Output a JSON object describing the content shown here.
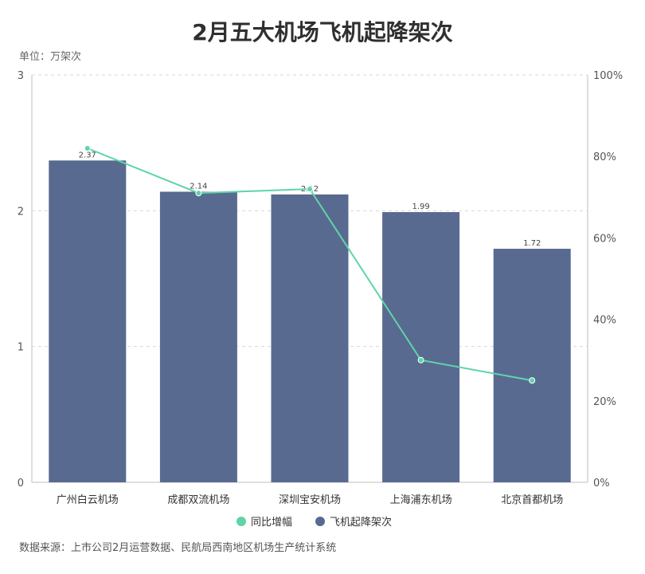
{
  "chart_data": {
    "type": "bar",
    "title": "2月五大机场飞机起降架次",
    "unit_label": "单位：万架次",
    "categories": [
      "广州白云机场",
      "成都双流机场",
      "深圳宝安机场",
      "上海浦东机场",
      "北京首都机场"
    ],
    "series": [
      {
        "name": "飞机起降架次",
        "type": "bar",
        "axis": "left",
        "values": [
          2.37,
          2.14,
          2.12,
          1.99,
          1.72
        ],
        "labels": [
          "2.37",
          "2.14",
          "2.12",
          "1.99",
          "1.72"
        ],
        "color": "#596a91"
      },
      {
        "name": "同比增幅",
        "type": "line",
        "axis": "right",
        "values": [
          82,
          71,
          72,
          30,
          25
        ],
        "color": "#5fd4a7"
      }
    ],
    "y_left": {
      "min": 0,
      "max": 3,
      "ticks": [
        "0",
        "1",
        "2",
        "3"
      ]
    },
    "y_right": {
      "min": 0,
      "max": 100,
      "ticks": [
        "0%",
        "20%",
        "40%",
        "60%",
        "80%",
        "100%"
      ]
    },
    "grid": true,
    "legend": "bottom-center",
    "source": "数据来源：上市公司2月运营数据、民航局西南地区机场生产统计系统"
  }
}
